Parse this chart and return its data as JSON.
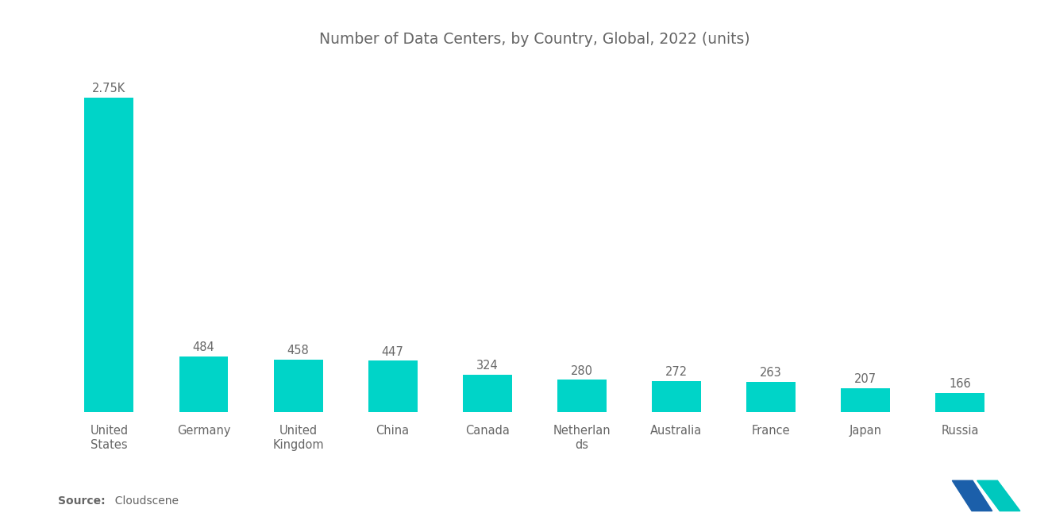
{
  "title": "Number of Data Centers, by Country, Global, 2022 (units)",
  "categories": [
    "United\nStates",
    "Germany",
    "United\nKingdom",
    "China",
    "Canada",
    "Netherlan\nds",
    "Australia",
    "France",
    "Japan",
    "Russia"
  ],
  "values": [
    2750,
    484,
    458,
    447,
    324,
    280,
    272,
    263,
    207,
    166
  ],
  "labels": [
    "2.75K",
    "484",
    "458",
    "447",
    "324",
    "280",
    "272",
    "263",
    "207",
    "166"
  ],
  "bar_color": "#00D4C8",
  "background_color": "#ffffff",
  "source_bold": "Source:",
  "source_normal": "  Cloudscene",
  "title_fontsize": 13.5,
  "label_fontsize": 10.5,
  "tick_fontsize": 10.5,
  "source_fontsize": 10,
  "ylim": [
    0,
    3050
  ],
  "text_color": "#666666",
  "logo_blue": "#1B5FAA",
  "logo_teal": "#00C8BE"
}
